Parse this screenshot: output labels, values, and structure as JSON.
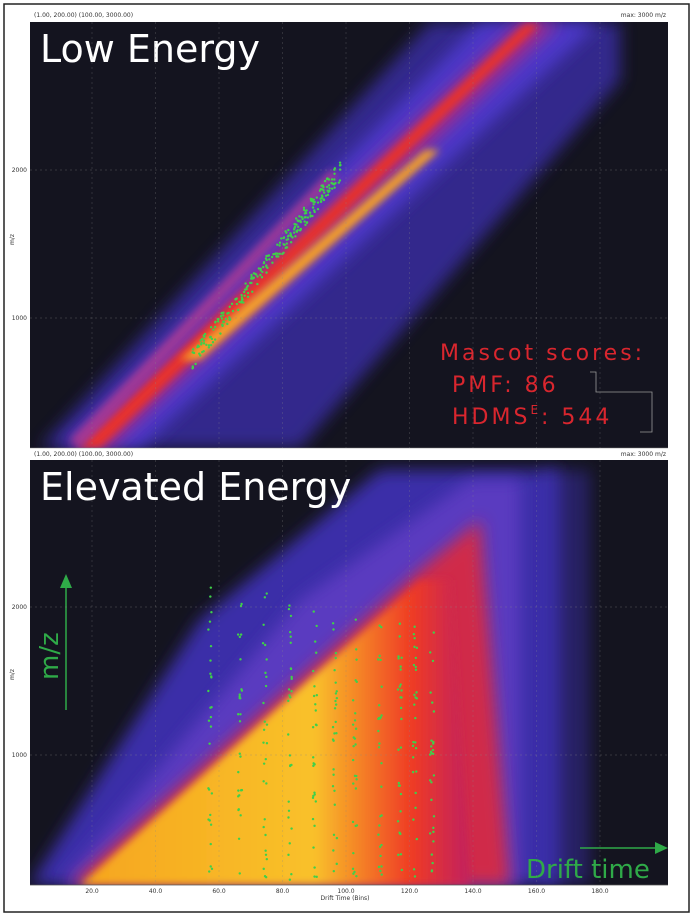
{
  "figure": {
    "panels": [
      {
        "title": "Low Energy",
        "header_left": "(1.00, 200.00) (100.00, 3000.00)",
        "header_right": "max: 3000 m/z",
        "y_axis_label": "m/z",
        "y_ticks": [
          "2000",
          "1000"
        ]
      },
      {
        "title": "Elevated Energy",
        "header_left": "(1.00, 200.00) (100.00, 3000.00)",
        "header_right": "max: 3000 m/z",
        "y_axis_label": "m/z",
        "y_ticks": [
          "2000",
          "1000"
        ],
        "x_axis_label": "Drift Time (Bins)",
        "x_ticks": [
          "20.0",
          "40.0",
          "60.0",
          "80.0",
          "100.0",
          "120.0",
          "140.0",
          "160.0",
          "180.0"
        ]
      }
    ],
    "scores": {
      "heading": "Mascot scores:",
      "pmf": "PMF: 86",
      "hdms": "HDMS",
      "hdms_sup": "E",
      "hdms_value": ": 544"
    },
    "arrow_labels": {
      "vertical": "m/z",
      "horizontal": "Drift time"
    }
  }
}
